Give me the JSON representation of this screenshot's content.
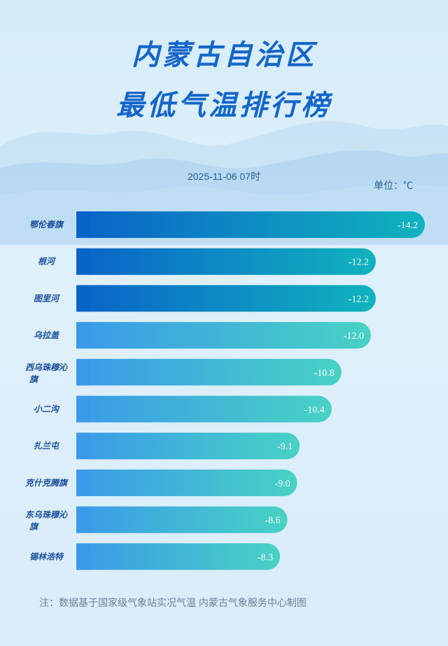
{
  "title_line1": "内蒙古自治区",
  "title_line2": "最低气温排行榜",
  "timestamp": "2025-11-06 07时",
  "unit": "单位：℃",
  "note": "注：数据基于国家级气象站实况气温 内蒙古气象服务中心制图",
  "colors": {
    "title": "#1466c9",
    "bar_dark_start": "#0a63c8",
    "bar_dark_end": "#10b3be",
    "bar_light_start": "#3a9ae8",
    "bar_light_end": "#48d2c4",
    "label": "#1a4f9a"
  },
  "chart_data": {
    "type": "bar",
    "orientation": "horizontal",
    "categories": [
      "鄂伦春旗",
      "根河",
      "图里河",
      "乌拉盖",
      "西乌珠穆沁旗",
      "小二沟",
      "扎兰屯",
      "克什克腾旗",
      "东乌珠穆沁旗",
      "锡林浩特"
    ],
    "values": [
      -14.2,
      -12.2,
      -12.2,
      -12.0,
      -10.8,
      -10.4,
      -9.1,
      -9.0,
      -8.6,
      -8.3
    ],
    "value_labels": [
      "-14.2",
      "-12.2",
      "-12.2",
      "-12.0",
      "-10.8",
      "-10.4",
      "-9.1",
      "-9.0",
      "-8.6",
      "-8.3"
    ],
    "styles": [
      "dark",
      "dark",
      "dark",
      "light",
      "light",
      "light",
      "light",
      "light",
      "light",
      "light"
    ],
    "title": "最低气温排行榜",
    "xlabel": "",
    "ylabel": "",
    "unit": "℃",
    "grid": false
  }
}
